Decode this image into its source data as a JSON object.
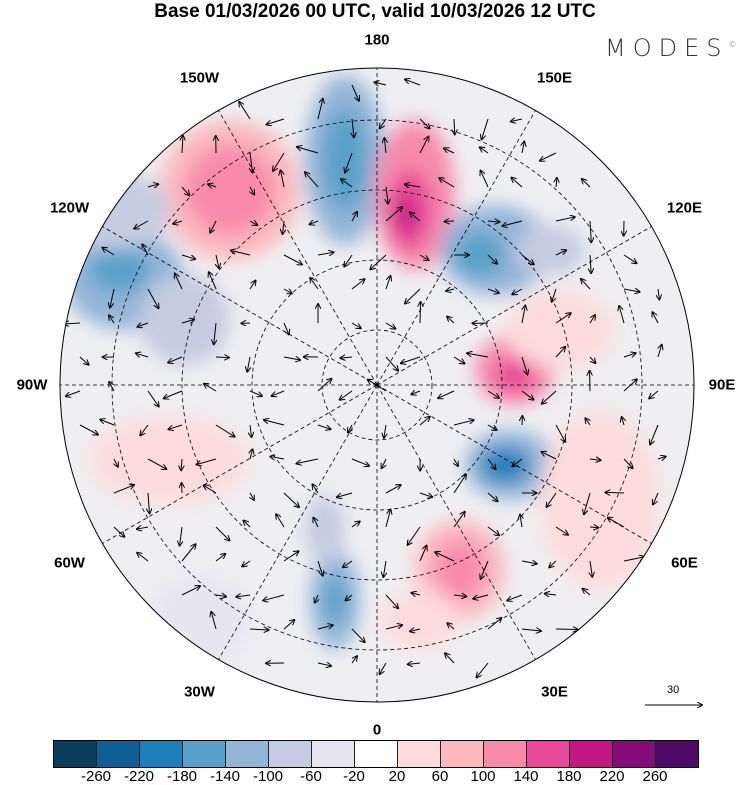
{
  "title": "Base 01/03/2026 00 UTC, valid 10/03/2026 12 UTC",
  "logo": "MODES",
  "logo_mark": "©",
  "longitude_labels": [
    "180",
    "150E",
    "120E",
    "90E",
    "60E",
    "30E",
    "0",
    "30W",
    "60W",
    "90W",
    "120W",
    "150W"
  ],
  "reference_vector": {
    "label": "30"
  },
  "colorbar": {
    "colors": [
      "#0b3d5c",
      "#0d5f94",
      "#1c7fbb",
      "#58a0c9",
      "#93b5d8",
      "#c5cce2",
      "#e7e5f1",
      "#ffffff",
      "#fddcdb",
      "#fbb9bd",
      "#f78aab",
      "#e8489a",
      "#bf1883",
      "#850c76",
      "#4d0b67"
    ],
    "ticks": [
      "-260",
      "-220",
      "-180",
      "-140",
      "-100",
      "-60",
      "-20",
      "20",
      "60",
      "100",
      "140",
      "180",
      "220",
      "260"
    ]
  }
}
